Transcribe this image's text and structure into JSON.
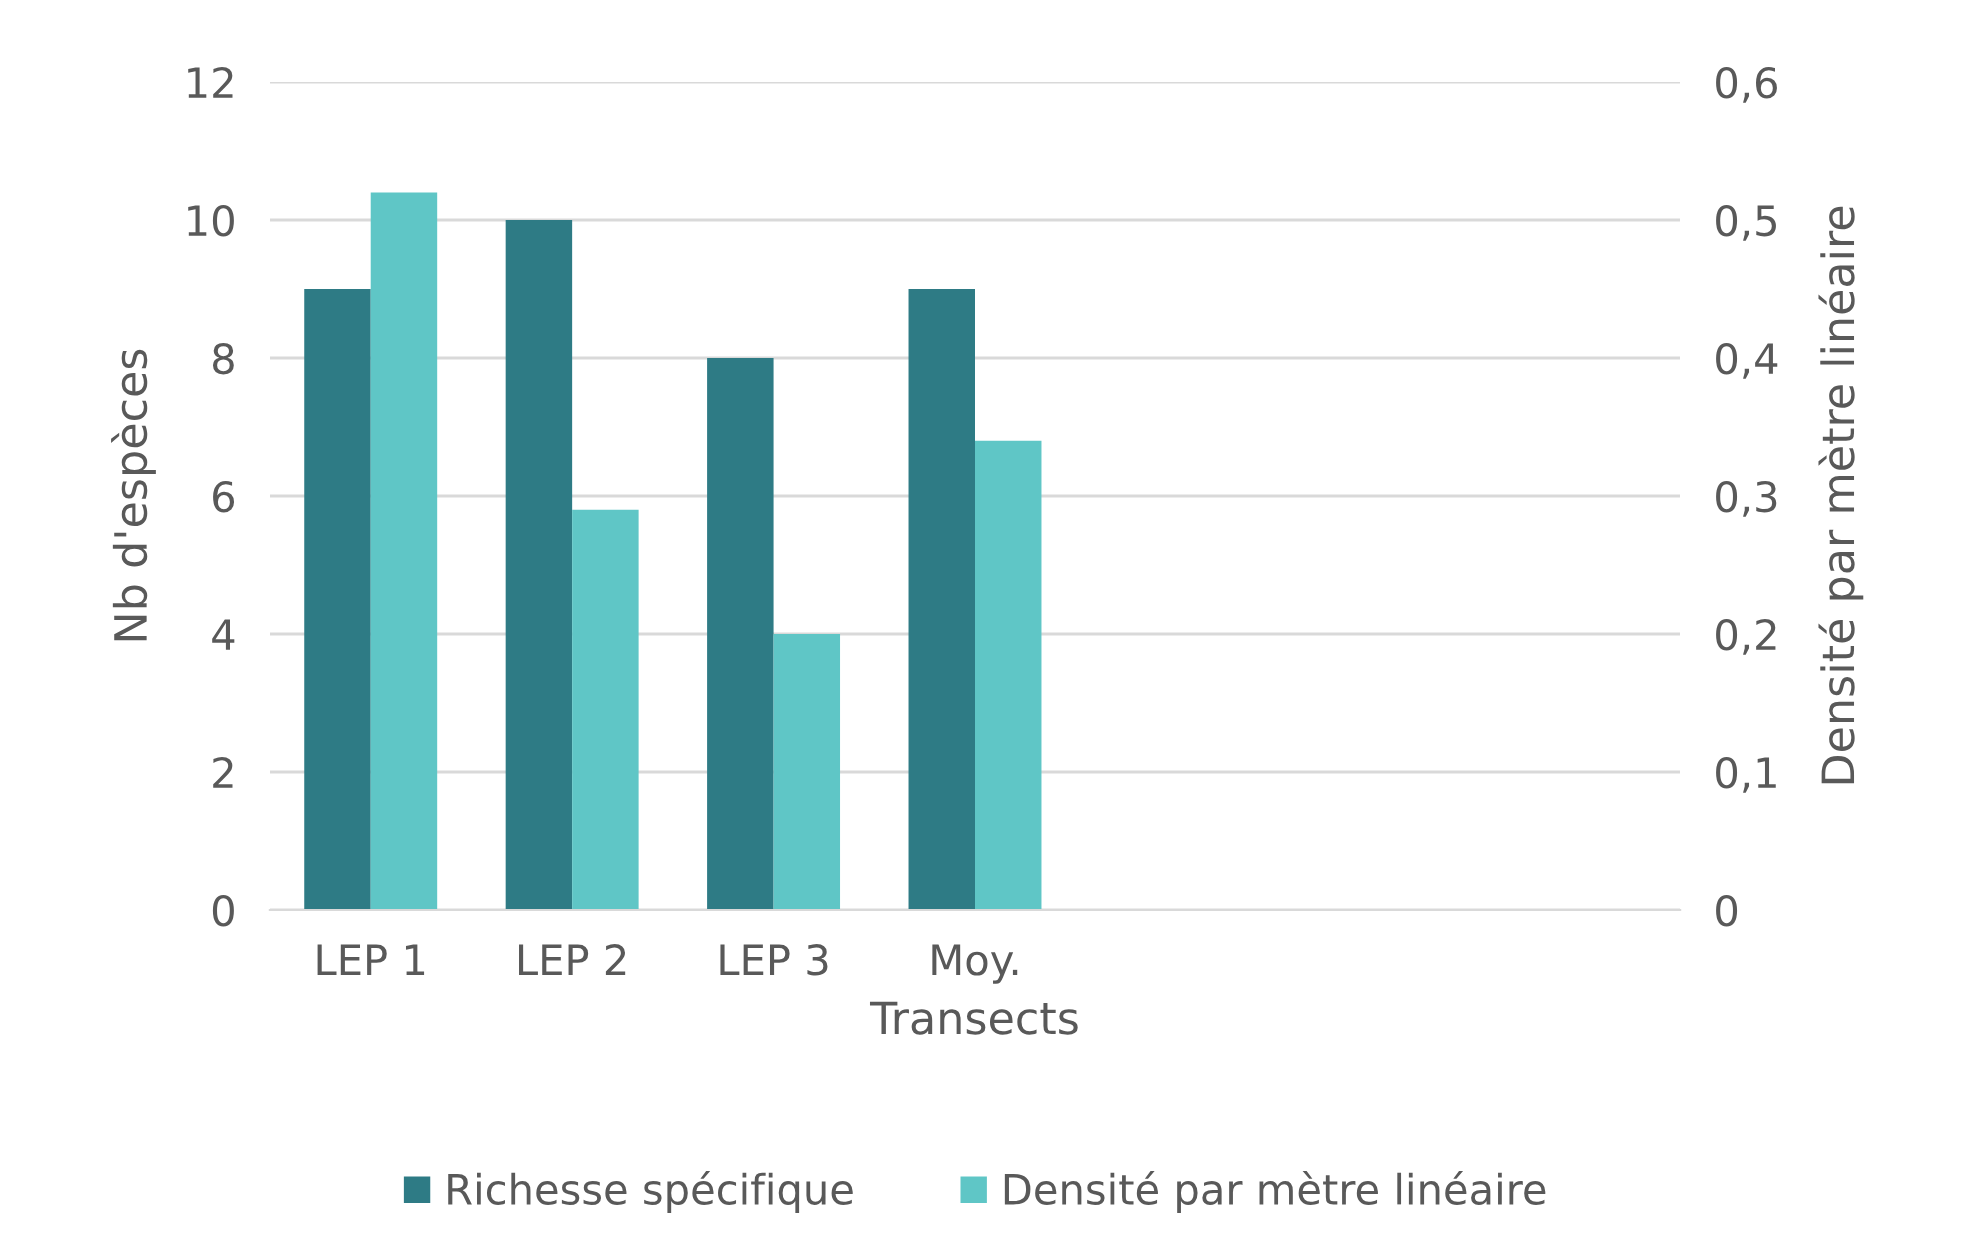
{
  "chart_data": {
    "type": "bar",
    "xlabel": "Transects",
    "ylabel": "Nb d'espèces",
    "y2label": "Densité par mètre linéaire",
    "categories": [
      "LEP 1",
      "LEP 2",
      "LEP 3",
      "Moy.",
      null,
      null,
      null
    ],
    "series": [
      {
        "name": "Richesse spécifique",
        "color": "#2e7b85",
        "values": [
          9,
          10,
          8,
          9,
          null,
          null,
          null
        ]
      },
      {
        "name": "Densité par mètre linéaire",
        "color": "#5fc6c6",
        "axis": "y2",
        "values": [
          0.52,
          0.29,
          0.2,
          0.34,
          null,
          null,
          null
        ]
      }
    ],
    "ylim": [
      0,
      12
    ],
    "yticks": [
      0,
      2,
      4,
      6,
      8,
      10,
      12
    ],
    "y2lim": [
      0,
      0.6
    ],
    "y2ticks": [
      {
        "value": 0,
        "label": "0"
      },
      {
        "value": 0.1,
        "label": "0,1"
      },
      {
        "value": 0.2,
        "label": "0,2"
      },
      {
        "value": 0.3,
        "label": "0,3"
      },
      {
        "value": 0.4,
        "label": "0,4"
      },
      {
        "value": 0.5,
        "label": "0,5"
      },
      {
        "value": 0.6,
        "label": "0,6"
      }
    ],
    "grid": "y",
    "legend": "bottom"
  }
}
